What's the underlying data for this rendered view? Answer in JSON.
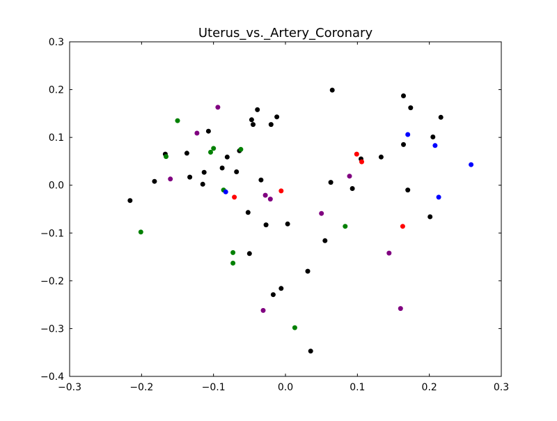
{
  "chart_data": {
    "type": "scatter",
    "title": "Uterus_vs._Artery_Coronary",
    "xlabel": "",
    "ylabel": "",
    "xlim": [
      -0.3,
      0.3
    ],
    "ylim": [
      -0.4,
      0.3
    ],
    "x_ticks": [
      -0.3,
      -0.2,
      -0.1,
      0.0,
      0.1,
      0.2,
      0.3
    ],
    "y_ticks": [
      -0.4,
      -0.3,
      -0.2,
      -0.1,
      0.0,
      0.1,
      0.2,
      0.3
    ],
    "x_tick_labels": [
      "−0.3",
      "−0.2",
      "−0.1",
      "0.0",
      "0.1",
      "0.2",
      "0.3"
    ],
    "y_tick_labels": [
      "−0.4",
      "−0.3",
      "−0.2",
      "−0.1",
      "0.0",
      "0.1",
      "0.2",
      "0.3"
    ],
    "grid": false,
    "legend": "none",
    "series": [
      {
        "color": "#000000",
        "points": [
          [
            -0.216,
            -0.032
          ],
          [
            -0.182,
            0.008
          ],
          [
            -0.167,
            0.065
          ],
          [
            -0.137,
            0.067
          ],
          [
            -0.133,
            0.017
          ],
          [
            -0.115,
            0.002
          ],
          [
            -0.113,
            0.027
          ],
          [
            -0.107,
            0.113
          ],
          [
            -0.088,
            0.036
          ],
          [
            -0.081,
            0.059
          ],
          [
            -0.068,
            0.028
          ],
          [
            -0.064,
            0.072
          ],
          [
            -0.052,
            -0.057
          ],
          [
            -0.047,
            0.137
          ],
          [
            -0.045,
            0.127
          ],
          [
            -0.039,
            0.158
          ],
          [
            -0.034,
            0.011
          ],
          [
            -0.027,
            -0.083
          ],
          [
            -0.02,
            0.127
          ],
          [
            -0.012,
            0.143
          ],
          [
            -0.05,
            -0.143
          ],
          [
            0.003,
            -0.081
          ],
          [
            -0.017,
            -0.229
          ],
          [
            -0.006,
            -0.216
          ],
          [
            0.031,
            -0.18
          ],
          [
            0.035,
            -0.347
          ],
          [
            0.055,
            -0.116
          ],
          [
            0.063,
            0.006
          ],
          [
            0.065,
            0.199
          ],
          [
            0.093,
            -0.007
          ],
          [
            0.105,
            0.055
          ],
          [
            0.133,
            0.059
          ],
          [
            0.164,
            0.187
          ],
          [
            0.164,
            0.085
          ],
          [
            0.17,
            -0.01
          ],
          [
            0.174,
            0.162
          ],
          [
            0.201,
            -0.066
          ],
          [
            0.205,
            0.101
          ],
          [
            0.216,
            0.142
          ]
        ]
      },
      {
        "color": "#008000",
        "points": [
          [
            -0.201,
            -0.098
          ],
          [
            -0.166,
            0.06
          ],
          [
            -0.15,
            0.135
          ],
          [
            -0.104,
            0.069
          ],
          [
            -0.1,
            0.077
          ],
          [
            -0.086,
            -0.01
          ],
          [
            -0.062,
            0.075
          ],
          [
            -0.073,
            -0.141
          ],
          [
            -0.073,
            -0.163
          ],
          [
            0.013,
            -0.298
          ],
          [
            0.083,
            -0.086
          ]
        ]
      },
      {
        "color": "#800080",
        "points": [
          [
            -0.16,
            0.013
          ],
          [
            -0.123,
            0.109
          ],
          [
            -0.094,
            0.163
          ],
          [
            -0.028,
            -0.021
          ],
          [
            -0.021,
            -0.029
          ],
          [
            -0.031,
            -0.262
          ],
          [
            0.05,
            -0.059
          ],
          [
            0.089,
            0.019
          ],
          [
            0.144,
            -0.142
          ],
          [
            0.16,
            -0.258
          ]
        ]
      },
      {
        "color": "#ff0000",
        "points": [
          [
            -0.071,
            -0.025
          ],
          [
            -0.006,
            -0.012
          ],
          [
            0.099,
            0.065
          ],
          [
            0.106,
            0.049
          ],
          [
            0.163,
            -0.086
          ]
        ]
      },
      {
        "color": "#0000ff",
        "points": [
          [
            -0.083,
            -0.014
          ],
          [
            0.17,
            0.106
          ],
          [
            0.208,
            0.083
          ],
          [
            0.213,
            -0.025
          ],
          [
            0.258,
            0.043
          ]
        ]
      }
    ]
  }
}
